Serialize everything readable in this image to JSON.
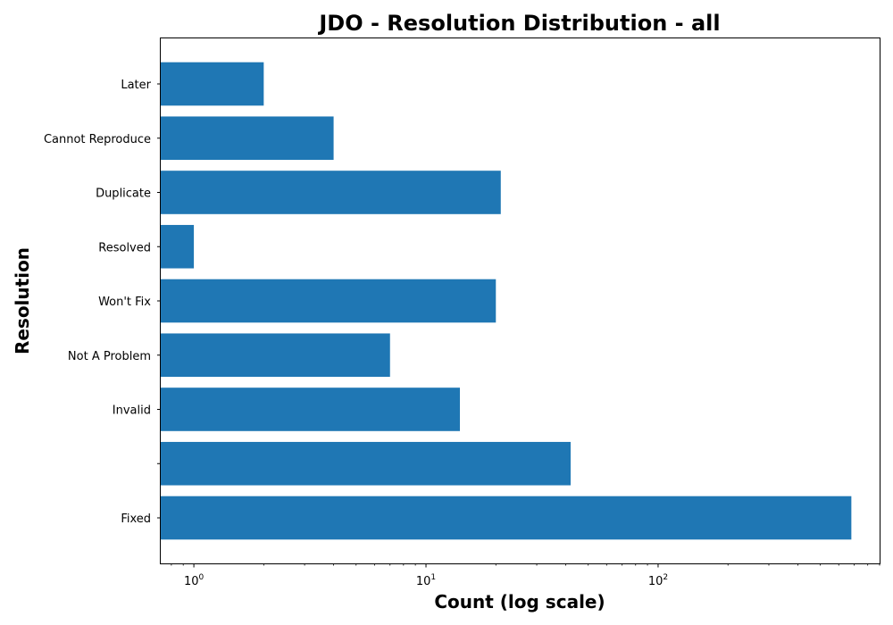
{
  "chart_data": {
    "type": "bar",
    "orientation": "horizontal",
    "title": "JDO - Resolution Distribution - all",
    "xlabel": "Count (log scale)",
    "ylabel": "Resolution",
    "x_scale": "log",
    "xlim": [
      0.72,
      900
    ],
    "x_ticks": [
      {
        "base": "10",
        "exp": "0",
        "value": 1
      },
      {
        "base": "10",
        "exp": "1",
        "value": 10
      },
      {
        "base": "10",
        "exp": "2",
        "value": 100
      }
    ],
    "categories": [
      "Later",
      "Cannot Reproduce",
      "Duplicate",
      "Resolved",
      "Won't Fix",
      "Not A Problem",
      "Invalid",
      "",
      "Fixed"
    ],
    "values": [
      2,
      4,
      21,
      1,
      20,
      7,
      14,
      42,
      680
    ],
    "bar_color": "#1f77b4",
    "grid": false,
    "legend": "none"
  }
}
